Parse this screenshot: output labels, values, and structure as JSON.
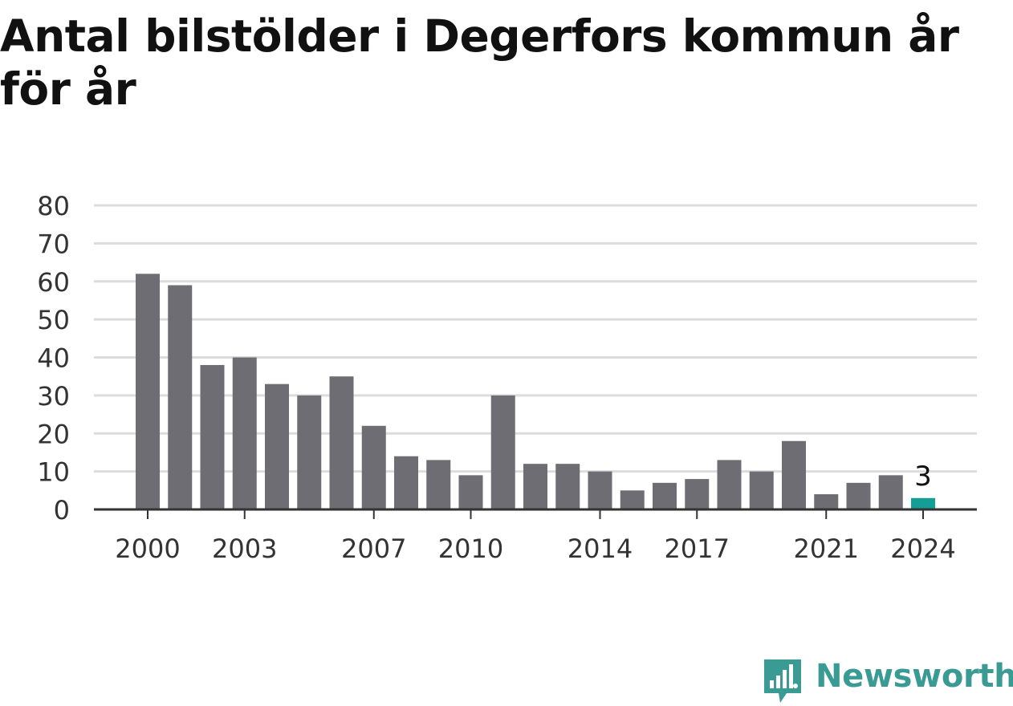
{
  "title": "Antal bilstölder i Degerfors kommun år för år",
  "colors": {
    "bar": "#6e6d73",
    "highlight": "#139e96",
    "grid": "#dcdcdc",
    "axis": "#333333",
    "text": "#333333",
    "brand": "#3a9a94"
  },
  "chart_data": {
    "type": "bar",
    "title": "Antal bilstölder i Degerfors kommun år för år",
    "xlabel": "",
    "ylabel": "",
    "categories": [
      2000,
      2001,
      2002,
      2003,
      2004,
      2005,
      2006,
      2007,
      2008,
      2009,
      2010,
      2011,
      2012,
      2013,
      2014,
      2015,
      2016,
      2017,
      2018,
      2019,
      2020,
      2021,
      2022,
      2023,
      2024
    ],
    "values": [
      62,
      59,
      38,
      40,
      33,
      30,
      35,
      22,
      14,
      13,
      9,
      30,
      12,
      12,
      10,
      5,
      7,
      8,
      13,
      10,
      18,
      4,
      7,
      9,
      3
    ],
    "highlight_index": 24,
    "data_labels": [
      {
        "category": 2024,
        "text": "3"
      }
    ],
    "ylim": [
      0,
      80
    ],
    "yticks": [
      0,
      10,
      20,
      30,
      40,
      50,
      60,
      70,
      80
    ],
    "xticks": [
      2000,
      2003,
      2007,
      2010,
      2014,
      2017,
      2021,
      2024
    ],
    "grid": true
  },
  "logo": {
    "text": "Newsworthy",
    "icon": "newsworthy-chart-bubble-icon"
  }
}
